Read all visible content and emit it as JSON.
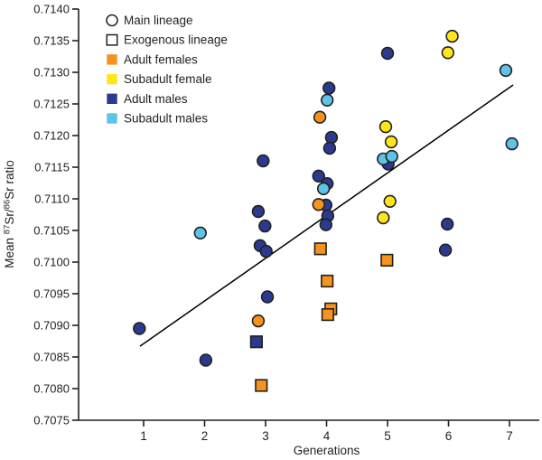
{
  "chart_data": {
    "type": "scatter",
    "title": "",
    "xlabel": "Generations",
    "ylabel_parts": {
      "prefix": "Mean ",
      "sup1": "87",
      "mid": "Sr/",
      "sup2": "86",
      "suffix": "Sr ratio"
    },
    "ylabel_plain": "Mean 87Sr/86Sr ratio",
    "xticks": [
      "1",
      "2",
      "3",
      "4",
      "5",
      "6",
      "7"
    ],
    "yticks": [
      "0.7140",
      "0.7135",
      "0.7130",
      "0.7125",
      "0.7120",
      "0.7115",
      "0.7110",
      "0.7105",
      "0.7100",
      "0.7095",
      "0.7090",
      "0.7085",
      "0.7080",
      "0.7075"
    ],
    "ylim": [
      0.7075,
      0.714
    ],
    "xlim": [
      1,
      7
    ],
    "grid": false,
    "legend_position": "top-left",
    "palette": {
      "adult_female": "#F6921E",
      "subadult_female": "#FFE619",
      "adult_male": "#2A3B8F",
      "subadult_male": "#5BC4E7",
      "marker_stroke": "#231F20",
      "axis": "#231F20",
      "trendline": "#000000"
    },
    "legend": [
      {
        "label": "Main lineage",
        "marker": "open-circle"
      },
      {
        "label": "Exogenous lineage",
        "marker": "open-square"
      },
      {
        "label": "Adult females",
        "marker": "swatch",
        "color_key": "adult_female"
      },
      {
        "label": "Subadult female",
        "marker": "swatch",
        "color_key": "subadult_female"
      },
      {
        "label": "Adult males",
        "marker": "swatch",
        "color_key": "adult_male"
      },
      {
        "label": "Subadult males",
        "marker": "swatch",
        "color_key": "subadult_male"
      }
    ],
    "series": [
      {
        "name": "Adult males – main lineage",
        "marker": "circle",
        "color_key": "adult_male",
        "points": [
          [
            0.93,
            0.70895
          ],
          [
            2.02,
            0.70845
          ],
          [
            2.96,
            0.7116
          ],
          [
            2.88,
            0.7108
          ],
          [
            2.99,
            0.71057
          ],
          [
            2.91,
            0.71026
          ],
          [
            3.01,
            0.71017
          ],
          [
            3.03,
            0.70945
          ],
          [
            4.04,
            0.71275
          ],
          [
            4.08,
            0.71197
          ],
          [
            4.05,
            0.7118
          ],
          [
            3.87,
            0.71136
          ],
          [
            4.01,
            0.71124
          ],
          [
            3.99,
            0.7109
          ],
          [
            4.02,
            0.71073
          ],
          [
            3.99,
            0.71059
          ],
          [
            5.0,
            0.7133
          ],
          [
            5.01,
            0.71155
          ],
          [
            5.98,
            0.7106
          ],
          [
            5.95,
            0.71019
          ]
        ]
      },
      {
        "name": "Adult males – exogenous lineage",
        "marker": "square",
        "color_key": "adult_male",
        "points": [
          [
            2.85,
            0.70874
          ]
        ]
      },
      {
        "name": "Adult females – main lineage",
        "marker": "circle",
        "color_key": "adult_female",
        "points": [
          [
            3.89,
            0.71229
          ],
          [
            3.87,
            0.71091
          ],
          [
            2.88,
            0.70907
          ]
        ]
      },
      {
        "name": "Adult females – exogenous lineage",
        "marker": "square",
        "color_key": "adult_female",
        "points": [
          [
            2.93,
            0.70805
          ],
          [
            3.9,
            0.71021
          ],
          [
            4.01,
            0.7097
          ],
          [
            4.07,
            0.70926
          ],
          [
            4.02,
            0.70917
          ],
          [
            4.99,
            0.71003
          ]
        ]
      },
      {
        "name": "Subadult female – main lineage",
        "marker": "circle",
        "color_key": "subadult_female",
        "points": [
          [
            4.97,
            0.71214
          ],
          [
            5.06,
            0.7119
          ],
          [
            5.04,
            0.71096
          ],
          [
            4.93,
            0.7107
          ],
          [
            6.06,
            0.71357
          ],
          [
            5.99,
            0.71331
          ]
        ]
      },
      {
        "name": "Subadult males – main lineage",
        "marker": "circle",
        "color_key": "subadult_male",
        "points": [
          [
            1.93,
            0.71046
          ],
          [
            4.01,
            0.71256
          ],
          [
            3.95,
            0.71116
          ],
          [
            4.93,
            0.71163
          ],
          [
            5.07,
            0.71167
          ],
          [
            6.94,
            0.71303
          ],
          [
            7.04,
            0.71187
          ]
        ]
      }
    ],
    "trendline": {
      "x1": 0.94,
      "y1": 0.70867,
      "x2": 7.06,
      "y2": 0.7128
    }
  }
}
